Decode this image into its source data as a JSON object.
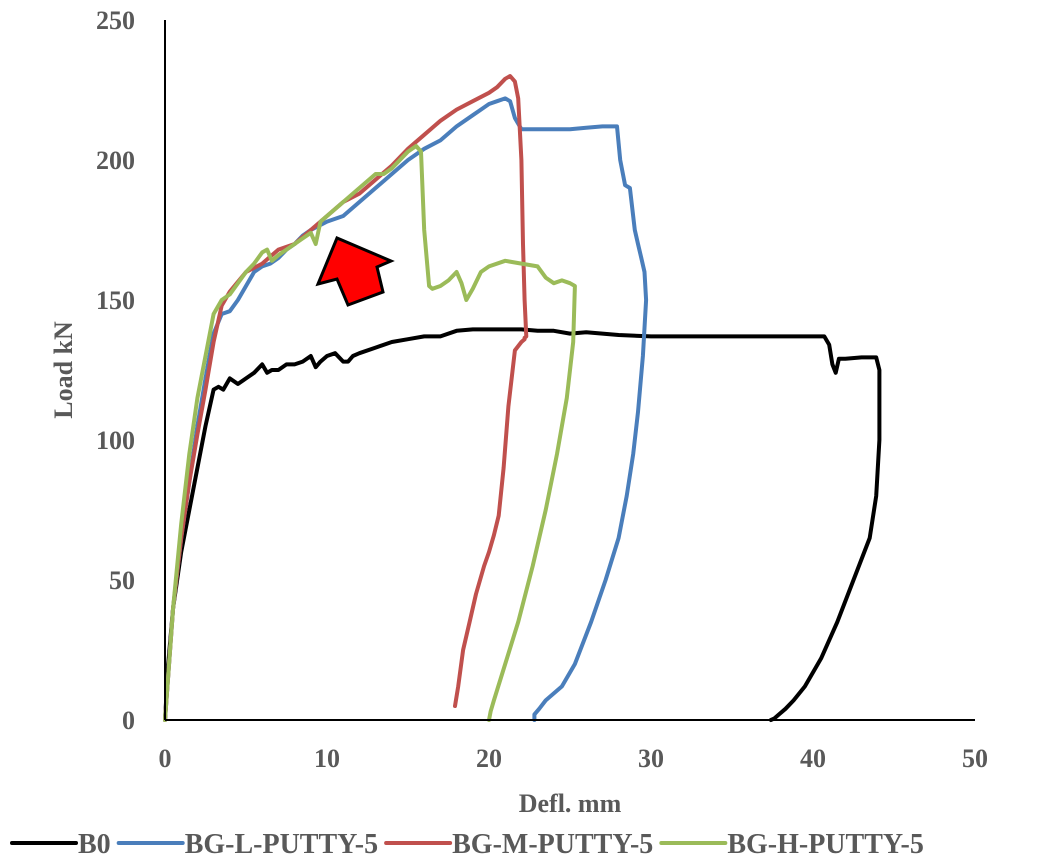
{
  "chart_data": {
    "type": "line",
    "title": "",
    "xlabel": "Defl. mm",
    "ylabel": "Load kN",
    "xlim": [
      0,
      50
    ],
    "ylim": [
      0,
      250
    ],
    "xticks": [
      0,
      10,
      20,
      30,
      40,
      50
    ],
    "yticks": [
      0,
      50,
      100,
      150,
      200,
      250
    ],
    "xtick_labels": [
      "0",
      "10",
      "20",
      "30",
      "40",
      "50"
    ],
    "ytick_labels": [
      "0",
      "50",
      "100",
      "150",
      "200",
      "250"
    ],
    "grid": false,
    "legend_position": "bottom",
    "annotation": {
      "shape": "red-arrow",
      "color": "#ff0000",
      "direction": "up-left"
    },
    "series": [
      {
        "name": "B0",
        "color": "#000000",
        "x": [
          0,
          0.2,
          0.5,
          1,
          1.5,
          2,
          2.5,
          3,
          3.3,
          3.6,
          4,
          4.5,
          5,
          5.5,
          6,
          6.3,
          6.6,
          7,
          7.5,
          8,
          8.5,
          9,
          9.3,
          9.6,
          10,
          10.5,
          11,
          11.3,
          11.6,
          12,
          13,
          14,
          15,
          16,
          17,
          18,
          19,
          20,
          21,
          22,
          23,
          24,
          25,
          26,
          27,
          28,
          30,
          32,
          34,
          36,
          38,
          40,
          40.7,
          41,
          41.2,
          41.4,
          41.6,
          42,
          43,
          43.9,
          44.1,
          44.1,
          43.9,
          43.5,
          42.5,
          41.5,
          40.5,
          39.5,
          38.8,
          38.3,
          37.9,
          37.6,
          37.4
        ],
        "y": [
          0,
          20,
          40,
          60,
          75,
          90,
          105,
          118,
          119,
          118,
          122,
          120,
          122,
          124,
          127,
          124,
          125,
          125,
          127,
          127,
          128,
          130,
          126,
          128,
          130,
          131,
          128,
          128,
          130,
          131,
          133,
          135,
          136,
          137,
          137,
          139,
          139.5,
          139.5,
          139.5,
          139.5,
          139,
          139,
          138,
          138.5,
          138,
          137.5,
          137,
          137,
          137,
          137,
          137,
          137,
          137,
          134,
          127,
          124,
          129,
          129,
          129.5,
          129.5,
          125,
          100,
          80,
          65,
          50,
          35,
          22,
          12,
          7,
          4,
          2,
          0.5,
          0
        ]
      },
      {
        "name": "BG-L-PUTTY-5",
        "color": "#4a7ebb",
        "x": [
          0,
          0.5,
          1,
          1.5,
          2,
          2.5,
          3,
          3.5,
          4,
          4.5,
          5,
          5.5,
          6,
          6.5,
          7,
          7.5,
          8,
          8.5,
          9,
          10,
          11,
          12,
          13,
          14,
          15,
          16,
          17,
          18,
          19,
          19.5,
          20,
          20.5,
          21,
          21.3,
          21.6,
          22,
          23,
          24,
          25,
          26,
          27,
          27.5,
          27.9,
          28.1,
          28.4,
          28.7,
          29,
          29.2,
          29.4,
          29.6,
          29.7,
          29.5,
          29.2,
          28.9,
          28.5,
          28,
          27.2,
          26.3,
          25.3,
          24.5,
          23.9,
          23.5,
          23.1,
          22.8,
          22.8
        ],
        "y": [
          0,
          40,
          65,
          85,
          105,
          122,
          138,
          145,
          146,
          150,
          155,
          160,
          162,
          163,
          165,
          168,
          170,
          173,
          175,
          178,
          180,
          185,
          190,
          195,
          200,
          204,
          207,
          212,
          216,
          218,
          220,
          221,
          222,
          221,
          215,
          211,
          211,
          211,
          211,
          211.5,
          212,
          212,
          212,
          200,
          191,
          190,
          175,
          170,
          165,
          160,
          150,
          130,
          110,
          95,
          80,
          65,
          50,
          35,
          20,
          12,
          9,
          7,
          4,
          2,
          0
        ]
      },
      {
        "name": "BG-M-PUTTY-5",
        "color": "#c0504d",
        "x": [
          0,
          0.5,
          1,
          1.5,
          2,
          2.5,
          3,
          3.5,
          4,
          5,
          6,
          7,
          8,
          9,
          10,
          11,
          12,
          13,
          14,
          15,
          16,
          17,
          18,
          19,
          20,
          20.5,
          21,
          21.3,
          21.6,
          21.8,
          22,
          22.1,
          22.2,
          22.3,
          22.3,
          22.2,
          22.2,
          22.0,
          21.6,
          21.2,
          20.9,
          20.6,
          20.3,
          20.0,
          19.7,
          19.2,
          18.8,
          18.4,
          18.1,
          17.9
        ],
        "y": [
          0,
          40,
          65,
          85,
          102,
          118,
          135,
          148,
          153,
          160,
          163,
          168,
          170,
          175,
          180,
          185,
          188,
          193,
          198,
          204,
          209,
          214,
          218,
          221,
          224,
          226,
          229,
          230,
          228,
          222,
          200,
          170,
          150,
          137,
          137,
          136.5,
          136,
          135,
          132,
          112,
          90,
          73,
          66,
          60,
          55,
          45,
          35,
          25,
          12,
          5
        ]
      },
      {
        "name": "BG-H-PUTTY-5",
        "color": "#9bbb59",
        "x": [
          0,
          0.5,
          1,
          1.5,
          2,
          2.5,
          3,
          3.5,
          4,
          4.5,
          5,
          5.5,
          6,
          6.3,
          6.6,
          7,
          7.5,
          8,
          8.5,
          9,
          9.3,
          9.6,
          10,
          11,
          12,
          13,
          13.5,
          14,
          14.5,
          15,
          15.5,
          15.8,
          16,
          16.3,
          16.5,
          17,
          17.5,
          18,
          18.3,
          18.6,
          19,
          19.5,
          20,
          21,
          22,
          23,
          23.5,
          24,
          24.5,
          25,
          25.3,
          25.2,
          24.8,
          24.2,
          23.5,
          22.7,
          21.8,
          21,
          20.3,
          20.1,
          20
        ],
        "y": [
          0,
          40,
          70,
          95,
          115,
          130,
          145,
          150,
          152,
          156,
          160,
          163,
          167,
          168,
          164,
          166,
          168,
          170,
          172,
          174,
          170,
          178,
          180,
          185,
          190,
          195,
          195,
          197,
          200,
          203,
          205,
          203,
          175,
          155,
          154,
          155,
          157,
          160,
          156,
          150,
          154,
          160,
          162,
          164,
          163,
          162,
          158,
          156,
          157,
          156,
          155,
          135,
          115,
          95,
          75,
          55,
          35,
          20,
          7,
          3,
          0
        ]
      }
    ]
  }
}
